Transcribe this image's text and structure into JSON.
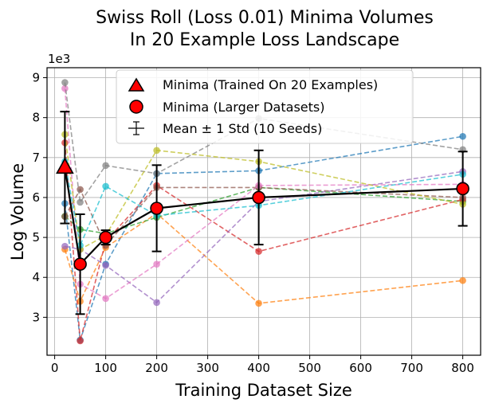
{
  "chart_data": {
    "type": "line",
    "title_line1": "Swiss Roll (Loss 0.01) Minima Volumes",
    "title_line2": "In 20 Example Loss Landscape",
    "xlabel": "Training Dataset Size",
    "ylabel": "Log Volume",
    "y_multiplier": "1e3",
    "xlim": [
      -15,
      835
    ],
    "ylim": [
      2050,
      9250
    ],
    "xticks": [
      0,
      100,
      200,
      300,
      400,
      500,
      600,
      700,
      800
    ],
    "yticks": [
      3000,
      4000,
      5000,
      6000,
      7000,
      8000,
      9000
    ],
    "ytick_labels": [
      "3",
      "4",
      "5",
      "6",
      "7",
      "8",
      "9"
    ],
    "grid": true,
    "legend_position": "top-center",
    "legend": [
      "Minima (Trained On 20 Examples)",
      "Minima (Larger Datasets)",
      "Mean ± 1 Std (10 Seeds)"
    ],
    "x": [
      20,
      50,
      100,
      200,
      400,
      800
    ],
    "seeds": [
      {
        "color": "#1f77b4",
        "values": [
          5850,
          2430,
          4330,
          6600,
          6670,
          7530
        ]
      },
      {
        "color": "#ff7f0e",
        "values": [
          4700,
          3400,
          4750,
          5600,
          3350,
          3920
        ]
      },
      {
        "color": "#2ca02c",
        "values": [
          5530,
          5200,
          5100,
          5500,
          6250,
          5900
        ]
      },
      {
        "color": "#d62728",
        "values": [
          7370,
          2410,
          4900,
          6300,
          4650,
          5950
        ]
      },
      {
        "color": "#9467bd",
        "values": [
          4780,
          4700,
          4300,
          3370,
          5900,
          6650
        ]
      },
      {
        "color": "#8c564b",
        "values": [
          5520,
          6200,
          4800,
          6250,
          6250,
          6000
        ]
      },
      {
        "color": "#e377c2",
        "values": [
          8730,
          3830,
          3470,
          4330,
          6300,
          6330
        ]
      },
      {
        "color": "#7f7f7f",
        "values": [
          8880,
          5880,
          6800,
          6600,
          7980,
          7200
        ]
      },
      {
        "color": "#bcbd22",
        "values": [
          7580,
          4700,
          5050,
          7180,
          6900,
          5830
        ]
      },
      {
        "color": "#17becf",
        "values": [
          6900,
          4800,
          6280,
          5550,
          5800,
          6580
        ]
      }
    ],
    "mean": {
      "color": "#000000",
      "values": [
        6750,
        4330,
        5000,
        5730,
        6000,
        6220
      ]
    },
    "std": [
      1400,
      1250,
      180,
      1080,
      1180,
      930
    ],
    "trained_on_20": {
      "x": 20,
      "y": 6750,
      "color": "#ff0000"
    }
  }
}
